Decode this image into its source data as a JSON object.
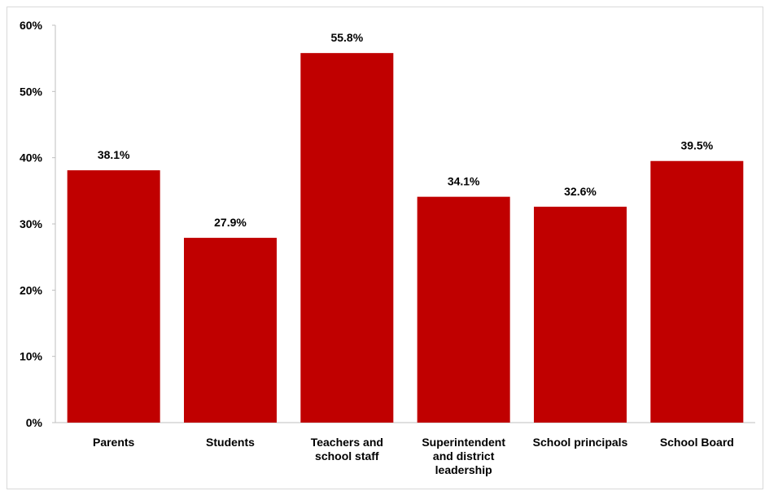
{
  "chart_data": {
    "type": "bar",
    "title": "",
    "xlabel": "",
    "ylabel": "",
    "categories": [
      [
        "Parents"
      ],
      [
        "Students"
      ],
      [
        "Teachers and",
        "school staff"
      ],
      [
        "Superintendent",
        "and district",
        "leadership"
      ],
      [
        "School principals"
      ],
      [
        "School Board"
      ]
    ],
    "values": [
      38.1,
      27.9,
      55.8,
      34.1,
      32.6,
      39.5
    ],
    "data_labels": [
      "38.1%",
      "27.9%",
      "55.8%",
      "34.1%",
      "32.6%",
      "39.5%"
    ],
    "ylim": [
      0,
      60
    ],
    "yticks": [
      0,
      10,
      20,
      30,
      40,
      50,
      60
    ],
    "ytick_labels": [
      "0%",
      "10%",
      "20%",
      "30%",
      "40%",
      "50%",
      "60%"
    ],
    "grid": false,
    "legend": "none",
    "bar_color": "#C00000"
  }
}
